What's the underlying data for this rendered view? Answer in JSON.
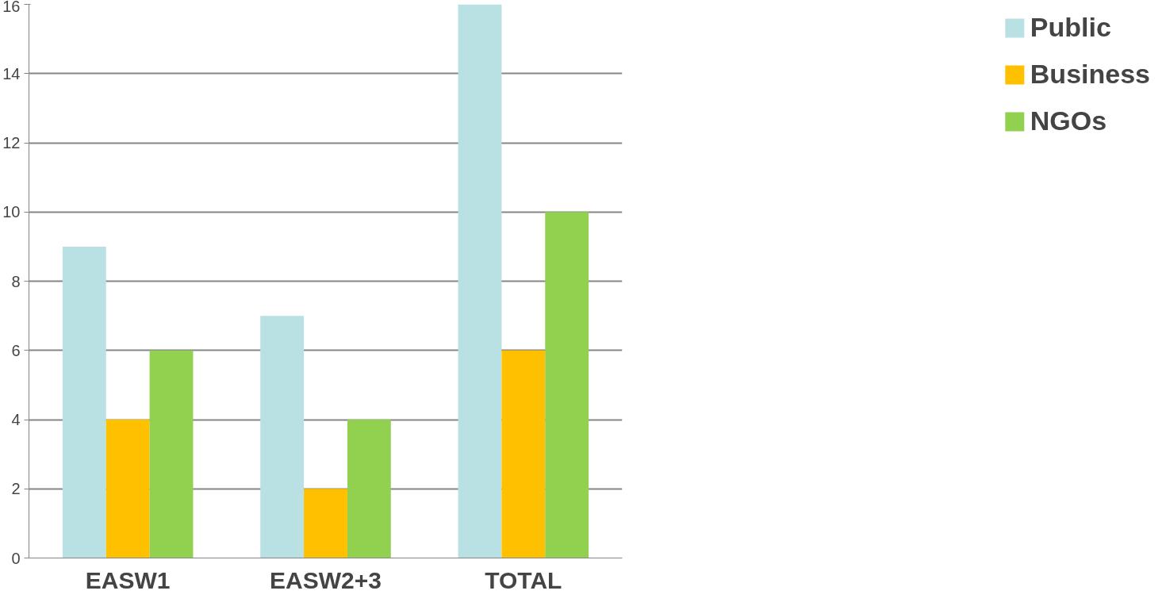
{
  "chart_data": {
    "type": "bar",
    "categories": [
      "EASW1",
      "EASW2+3",
      "TOTAL"
    ],
    "series": [
      {
        "name": "Public",
        "color": "#b9e0e2",
        "values": [
          9,
          7,
          16
        ]
      },
      {
        "name": "Business",
        "color": "#ffc000",
        "values": [
          4,
          2,
          6
        ]
      },
      {
        "name": "NGOs",
        "color": "#92d050",
        "values": [
          6,
          4,
          10
        ]
      }
    ],
    "ylim": [
      0,
      16
    ],
    "yticks": [
      0,
      2,
      4,
      6,
      8,
      10,
      12,
      14,
      16
    ],
    "grid": "y",
    "legend": "right"
  }
}
